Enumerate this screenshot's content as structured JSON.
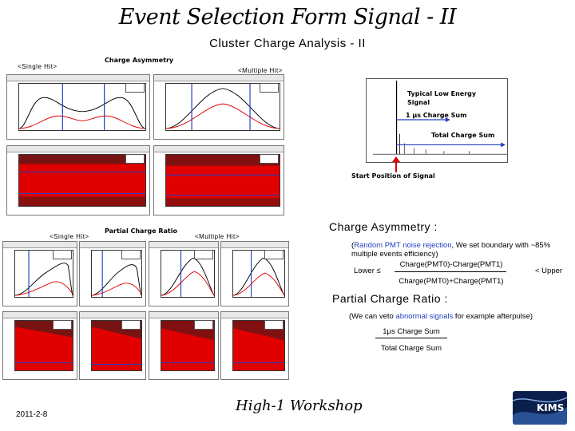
{
  "slide": {
    "title": "Event Selection Form Signal - II",
    "subtitle": "Cluster Charge Analysis - II",
    "date": "2011-2-8",
    "workshop": "High-1 Workshop",
    "logo_text": "KIMS"
  },
  "upper_panel": {
    "single_hit_label": "<Single Hit>",
    "charge_asymmetry_label": "Charge Asymmetry",
    "multiple_hit_label": "<Multiple Hit>"
  },
  "waveform": {
    "typical_label_line1": "Typical Low Energy",
    "typical_label_line2": "Signal",
    "one_us_label": "1 μs Charge Sum",
    "total_label": "Total Charge Sum",
    "start_label": "Start Position of Signal"
  },
  "lower_panel": {
    "single_hit_label": "<Single Hit>",
    "partial_ratio_label": "Partial Charge Ratio",
    "multiple_hit_label": "<Multiple Hit>"
  },
  "asymmetry": {
    "heading": "Charge Asymmetry :",
    "note_highlight": "Random PMT noise rejection",
    "note_rest": ", We set boundary with ~85%",
    "note_line2": "multiple events efficiency)",
    "open_paren": "(",
    "lower": "Lower  ≤",
    "numerator": "Charge(PMT0)-Charge(PMT1)",
    "denominator": "Charge(PMT0)+Charge(PMT1)",
    "upper": "< Upper"
  },
  "partial": {
    "heading": "Partial Charge Ratio :",
    "note_pre": "(We can veto ",
    "note_highlight": "abnormal signals",
    "note_post": " for example afterpulse)",
    "numerator": "1μs Charge Sum",
    "denominator": "Total Charge Sum"
  },
  "colors": {
    "highlight_blue": "#1f3fbf",
    "arrow_red": "#e00000",
    "scatter_red": "#e00000",
    "logo_navy": "#0b1f4d"
  }
}
